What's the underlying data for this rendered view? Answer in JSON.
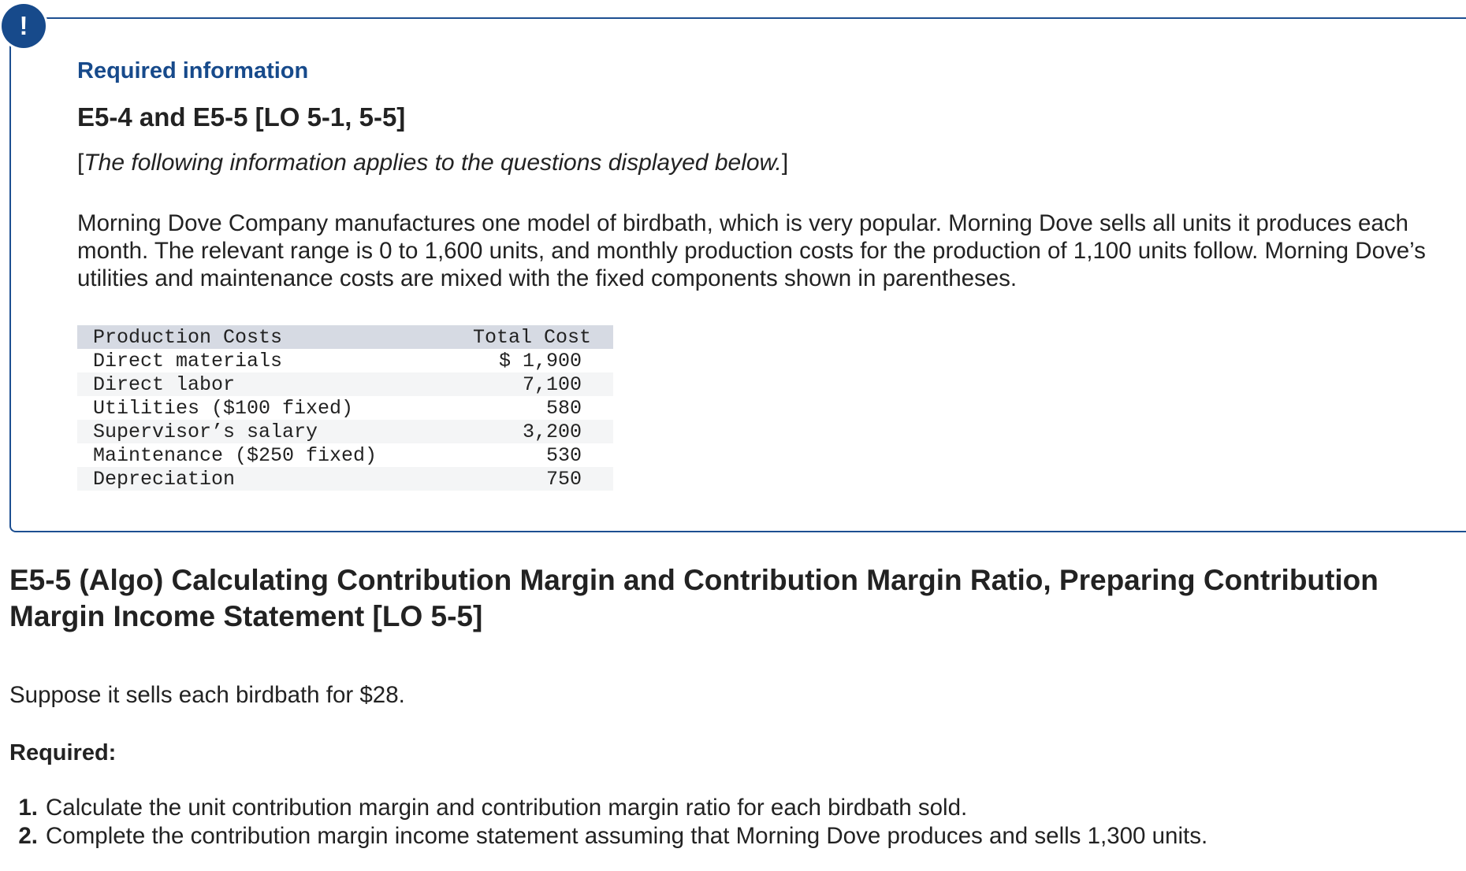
{
  "info_box": {
    "badge_icon": "!",
    "heading": "Required information",
    "problem_ref": "E5-4 and E5-5 [LO 5-1, 5-5]",
    "note_open": "[",
    "note_text": "The following information applies to the questions displayed below.",
    "note_close": "]",
    "intro": "Morning Dove Company manufactures one model of birdbath, which is very popular. Morning Dove sells all units it produces each month. The relevant range is 0 to 1,600 units, and monthly production costs for the production of 1,100 units follow. Morning Dove’s utilities and maintenance costs are mixed with the fixed components shown in parentheses.",
    "table": {
      "headers": [
        "Production Costs",
        "Total Cost"
      ],
      "rows": [
        {
          "label": "Direct materials",
          "value": "$ 1,900"
        },
        {
          "label": "Direct labor",
          "value": "7,100"
        },
        {
          "label": "Utilities ($100 fixed)",
          "value": "580"
        },
        {
          "label": "Supervisor’s salary",
          "value": "3,200"
        },
        {
          "label": "Maintenance ($250 fixed)",
          "value": "530"
        },
        {
          "label": "Depreciation",
          "value": "750"
        }
      ]
    }
  },
  "section_title": "E5-5 (Algo) Calculating Contribution Margin and Contribution Margin Ratio, Preparing Contribution Margin Income Statement [LO 5-5]",
  "prompt": "Suppose it sells each birdbath for $28.",
  "required_label": "Required:",
  "requirements": [
    {
      "num": "1.",
      "text": "Calculate the unit contribution margin and contribution margin ratio for each birdbath sold."
    },
    {
      "num": "2.",
      "text": "Complete the contribution margin income statement assuming that Morning Dove produces and sells 1,300 units."
    }
  ],
  "colors": {
    "accent": "#174a8b",
    "table_header": "#d6dae3",
    "row_stripe": "#f4f5f6"
  }
}
